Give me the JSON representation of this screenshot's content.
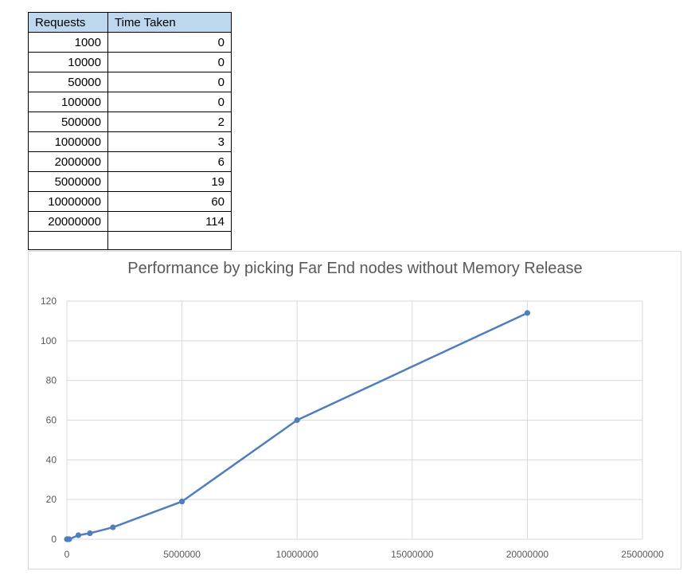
{
  "table": {
    "headers": [
      "Requests",
      "Time Taken"
    ],
    "rows": [
      [
        "1000",
        "0"
      ],
      [
        "10000",
        "0"
      ],
      [
        "50000",
        "0"
      ],
      [
        "100000",
        "0"
      ],
      [
        "500000",
        "2"
      ],
      [
        "1000000",
        "3"
      ],
      [
        "2000000",
        "6"
      ],
      [
        "5000000",
        "19"
      ],
      [
        "10000000",
        "60"
      ],
      [
        "20000000",
        "114"
      ]
    ]
  },
  "chart_data": {
    "type": "scatter",
    "title": "Performance by picking Far End nodes without Memory Release",
    "xlabel": "",
    "ylabel": "",
    "xlim": [
      0,
      25000000
    ],
    "ylim": [
      0,
      120
    ],
    "xticks": [
      "0",
      "5000000",
      "10000000",
      "15000000",
      "20000000",
      "25000000"
    ],
    "yticks": [
      "0",
      "20",
      "40",
      "60",
      "80",
      "100",
      "120"
    ],
    "grid": true,
    "legend": "none",
    "series": [
      {
        "x": [
          1000,
          10000,
          50000,
          100000,
          500000,
          1000000,
          2000000,
          5000000,
          10000000,
          20000000
        ],
        "y": [
          0,
          0,
          0,
          0,
          2,
          3,
          6,
          19,
          60,
          114
        ],
        "color": "#4e7ebd",
        "style": "lines-and-markers"
      }
    ]
  }
}
